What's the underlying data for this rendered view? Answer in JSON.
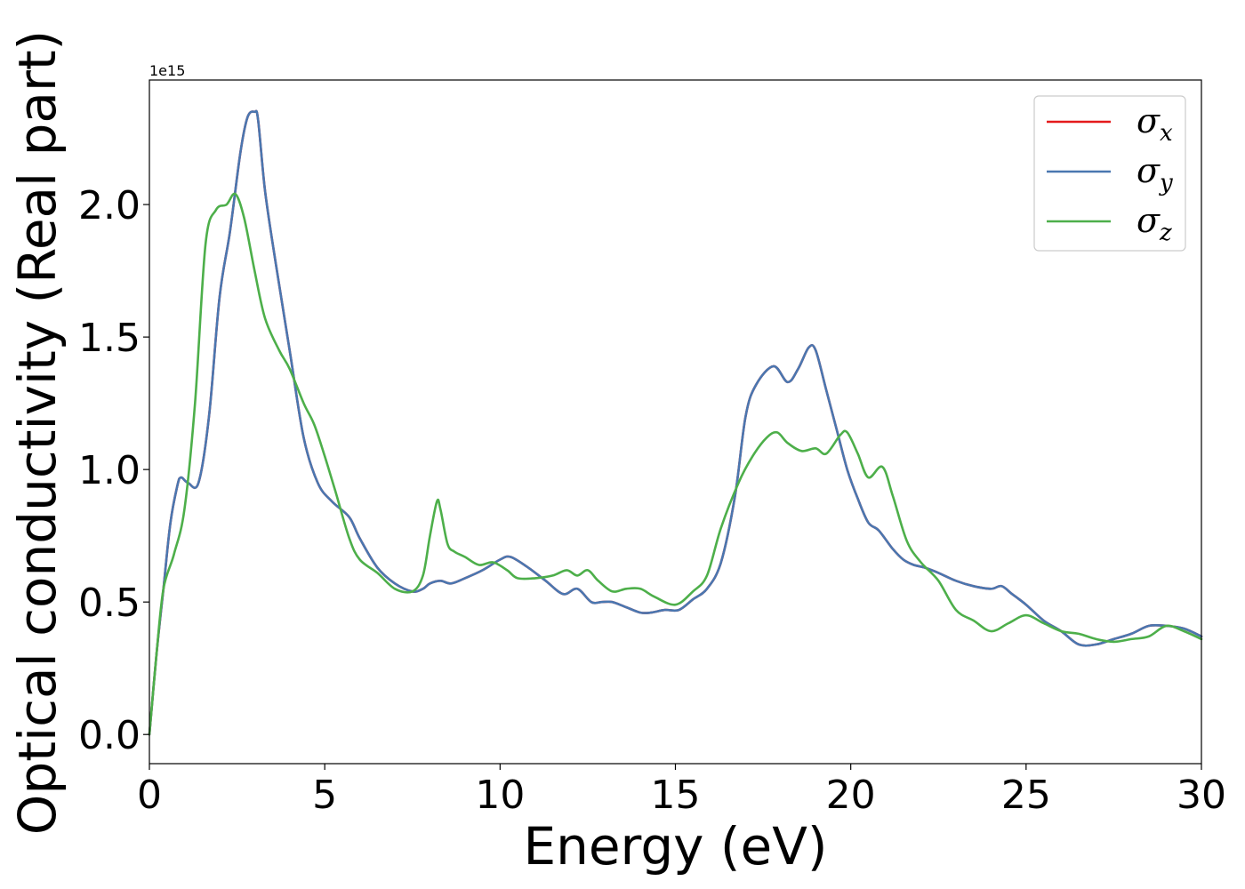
{
  "chart_data": {
    "type": "line",
    "xlabel": "Energy (eV)",
    "ylabel": "Optical conductivity (Real part)",
    "y_offset_text": "1e15",
    "xlim": [
      0,
      30
    ],
    "ylim": [
      -0.11,
      2.47
    ],
    "x_ticks": [
      0,
      5,
      10,
      15,
      20,
      25,
      30
    ],
    "x_tick_labels": [
      "0",
      "5",
      "10",
      "15",
      "20",
      "25",
      "30"
    ],
    "y_ticks": [
      0.0,
      0.5,
      1.0,
      1.5,
      2.0
    ],
    "y_tick_labels": [
      "0.0",
      "0.5",
      "1.0",
      "1.5",
      "2.0"
    ],
    "legend_position": "upper right",
    "grid": false,
    "series": [
      {
        "name": "σ",
        "subscript": "x",
        "color": "#e41a1c",
        "x": [
          0,
          0.2,
          0.4,
          0.6,
          0.8,
          0.9,
          1.1,
          1.4,
          1.7,
          2.0,
          2.3,
          2.6,
          2.8,
          3.0,
          3.1,
          3.3,
          3.6,
          4.0,
          4.4,
          4.8,
          5.2,
          5.7,
          6.0,
          6.5,
          7.0,
          7.5,
          7.8,
          8.0,
          8.3,
          8.6,
          9.0,
          9.5,
          10.0,
          10.3,
          10.8,
          11.3,
          11.8,
          12.2,
          12.6,
          12.9,
          13.2,
          13.6,
          14.0,
          14.3,
          14.7,
          15.1,
          15.5,
          15.9,
          16.3,
          16.7,
          17.0,
          17.3,
          17.8,
          18.2,
          18.5,
          18.8,
          19.0,
          19.3,
          19.6,
          19.9,
          20.2,
          20.5,
          20.8,
          21.2,
          21.5,
          21.8,
          22.1,
          22.5,
          23.0,
          23.5,
          24.0,
          24.3,
          24.6,
          25.0,
          25.5,
          26.0,
          26.5,
          27.0,
          27.5,
          28.0,
          28.5,
          29.0,
          29.5,
          30.0
        ],
        "values": [
          0.0,
          0.3,
          0.55,
          0.8,
          0.94,
          0.97,
          0.95,
          0.95,
          1.2,
          1.65,
          1.9,
          2.2,
          2.33,
          2.35,
          2.32,
          2.05,
          1.78,
          1.45,
          1.12,
          0.95,
          0.88,
          0.82,
          0.74,
          0.63,
          0.57,
          0.54,
          0.55,
          0.57,
          0.58,
          0.57,
          0.59,
          0.62,
          0.66,
          0.67,
          0.63,
          0.58,
          0.53,
          0.55,
          0.5,
          0.5,
          0.5,
          0.48,
          0.46,
          0.46,
          0.47,
          0.47,
          0.51,
          0.55,
          0.65,
          0.9,
          1.2,
          1.32,
          1.39,
          1.33,
          1.38,
          1.46,
          1.45,
          1.3,
          1.15,
          1.0,
          0.89,
          0.8,
          0.77,
          0.7,
          0.66,
          0.64,
          0.63,
          0.61,
          0.58,
          0.56,
          0.55,
          0.56,
          0.53,
          0.49,
          0.43,
          0.39,
          0.34,
          0.34,
          0.36,
          0.38,
          0.41,
          0.41,
          0.4,
          0.37
        ]
      },
      {
        "name": "σ",
        "subscript": "y",
        "color": "#4a77b0",
        "x": [
          0,
          0.2,
          0.4,
          0.6,
          0.8,
          0.9,
          1.1,
          1.4,
          1.7,
          2.0,
          2.3,
          2.6,
          2.8,
          3.0,
          3.1,
          3.3,
          3.6,
          4.0,
          4.4,
          4.8,
          5.2,
          5.7,
          6.0,
          6.5,
          7.0,
          7.5,
          7.8,
          8.0,
          8.3,
          8.6,
          9.0,
          9.5,
          10.0,
          10.3,
          10.8,
          11.3,
          11.8,
          12.2,
          12.6,
          12.9,
          13.2,
          13.6,
          14.0,
          14.3,
          14.7,
          15.1,
          15.5,
          15.9,
          16.3,
          16.7,
          17.0,
          17.3,
          17.8,
          18.2,
          18.5,
          18.8,
          19.0,
          19.3,
          19.6,
          19.9,
          20.2,
          20.5,
          20.8,
          21.2,
          21.5,
          21.8,
          22.1,
          22.5,
          23.0,
          23.5,
          24.0,
          24.3,
          24.6,
          25.0,
          25.5,
          26.0,
          26.5,
          27.0,
          27.5,
          28.0,
          28.5,
          29.0,
          29.5,
          30.0
        ],
        "values": [
          0.0,
          0.3,
          0.55,
          0.8,
          0.94,
          0.97,
          0.95,
          0.95,
          1.2,
          1.65,
          1.9,
          2.2,
          2.33,
          2.35,
          2.32,
          2.05,
          1.78,
          1.45,
          1.12,
          0.95,
          0.88,
          0.82,
          0.74,
          0.63,
          0.57,
          0.54,
          0.55,
          0.57,
          0.58,
          0.57,
          0.59,
          0.62,
          0.66,
          0.67,
          0.63,
          0.58,
          0.53,
          0.55,
          0.5,
          0.5,
          0.5,
          0.48,
          0.46,
          0.46,
          0.47,
          0.47,
          0.51,
          0.55,
          0.65,
          0.9,
          1.2,
          1.32,
          1.39,
          1.33,
          1.38,
          1.46,
          1.45,
          1.3,
          1.15,
          1.0,
          0.89,
          0.8,
          0.77,
          0.7,
          0.66,
          0.64,
          0.63,
          0.61,
          0.58,
          0.56,
          0.55,
          0.56,
          0.53,
          0.49,
          0.43,
          0.39,
          0.34,
          0.34,
          0.36,
          0.38,
          0.41,
          0.41,
          0.4,
          0.37
        ]
      },
      {
        "name": "σ",
        "subscript": "z",
        "color": "#4daf4a",
        "x": [
          0,
          0.2,
          0.4,
          0.7,
          1.0,
          1.3,
          1.6,
          1.9,
          2.2,
          2.45,
          2.7,
          3.0,
          3.3,
          3.7,
          4.0,
          4.4,
          4.7,
          5.0,
          5.3,
          5.7,
          6.0,
          6.5,
          7.0,
          7.5,
          7.8,
          8.0,
          8.2,
          8.3,
          8.5,
          8.7,
          9.0,
          9.4,
          9.8,
          10.2,
          10.5,
          11.0,
          11.5,
          11.9,
          12.2,
          12.5,
          12.8,
          13.2,
          13.6,
          14.0,
          14.4,
          15.0,
          15.5,
          15.9,
          16.3,
          16.8,
          17.2,
          17.6,
          17.9,
          18.2,
          18.6,
          19.0,
          19.3,
          19.7,
          19.9,
          20.2,
          20.5,
          20.9,
          21.2,
          21.6,
          22.0,
          22.5,
          23.0,
          23.5,
          24.0,
          24.5,
          25.0,
          25.5,
          26.0,
          26.5,
          27.0,
          27.5,
          28.0,
          28.5,
          29.0,
          29.5,
          30.0
        ],
        "values": [
          0.0,
          0.3,
          0.55,
          0.68,
          0.85,
          1.25,
          1.85,
          1.98,
          2.0,
          2.04,
          1.95,
          1.75,
          1.57,
          1.45,
          1.38,
          1.25,
          1.17,
          1.05,
          0.92,
          0.74,
          0.66,
          0.61,
          0.55,
          0.54,
          0.6,
          0.75,
          0.88,
          0.85,
          0.72,
          0.69,
          0.67,
          0.64,
          0.65,
          0.62,
          0.59,
          0.59,
          0.6,
          0.62,
          0.6,
          0.62,
          0.58,
          0.54,
          0.55,
          0.55,
          0.52,
          0.49,
          0.54,
          0.6,
          0.78,
          0.95,
          1.05,
          1.12,
          1.14,
          1.1,
          1.07,
          1.08,
          1.06,
          1.13,
          1.14,
          1.06,
          0.97,
          1.01,
          0.9,
          0.73,
          0.65,
          0.58,
          0.47,
          0.43,
          0.39,
          0.42,
          0.45,
          0.42,
          0.39,
          0.38,
          0.36,
          0.35,
          0.36,
          0.37,
          0.41,
          0.39,
          0.36
        ]
      }
    ]
  }
}
